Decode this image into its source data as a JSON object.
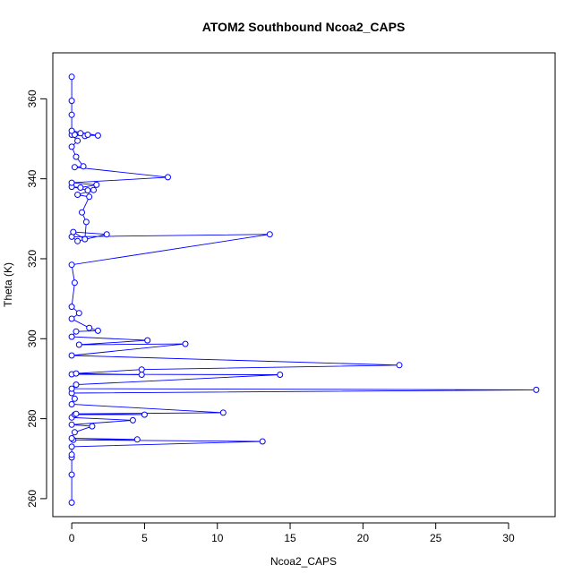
{
  "chart_data": {
    "type": "line",
    "title": "ATOM2 Southbound Ncoa2_CAPS",
    "xlabel": "Ncoa2_CAPS",
    "ylabel": "Theta (K)",
    "xlim": [
      -1.3,
      33.2
    ],
    "ylim": [
      255.5,
      371.5
    ],
    "xticks": [
      0,
      5,
      10,
      15,
      20,
      25,
      30
    ],
    "yticks": [
      260,
      280,
      300,
      320,
      340,
      360
    ],
    "grid": false,
    "series": [
      {
        "color": "#0000ff",
        "markers": "open-circle",
        "points": [
          [
            0.0,
            259.0
          ],
          [
            0.0,
            266.0
          ],
          [
            0.0,
            270.3
          ],
          [
            0.0,
            271.0
          ],
          [
            0.0,
            273.0
          ],
          [
            13.1,
            274.3
          ],
          [
            0.1,
            274.7
          ],
          [
            4.5,
            274.8
          ],
          [
            0.0,
            275.1
          ],
          [
            0.2,
            276.6
          ],
          [
            1.4,
            278.1
          ],
          [
            0.0,
            278.5
          ],
          [
            4.2,
            279.6
          ],
          [
            0.0,
            280.3
          ],
          [
            0.2,
            281.0
          ],
          [
            5.0,
            281.0
          ],
          [
            0.3,
            281.2
          ],
          [
            10.4,
            281.5
          ],
          [
            0.0,
            283.6
          ],
          [
            0.2,
            285.0
          ],
          [
            0.0,
            286.4
          ],
          [
            31.9,
            287.2
          ],
          [
            0.0,
            287.5
          ],
          [
            0.3,
            288.5
          ],
          [
            14.3,
            291.0
          ],
          [
            0.0,
            291.1
          ],
          [
            4.8,
            291.0
          ],
          [
            0.3,
            291.3
          ],
          [
            4.8,
            292.3
          ],
          [
            22.5,
            293.4
          ],
          [
            0.0,
            295.8
          ],
          [
            7.8,
            298.7
          ],
          [
            0.5,
            298.5
          ],
          [
            5.2,
            299.6
          ],
          [
            0.0,
            300.5
          ],
          [
            0.3,
            301.8
          ],
          [
            1.8,
            302.0
          ],
          [
            1.2,
            302.7
          ],
          [
            0.0,
            305.0
          ],
          [
            0.5,
            306.4
          ],
          [
            0.0,
            308.0
          ],
          [
            0.2,
            314.0
          ],
          [
            0.0,
            318.5
          ],
          [
            13.6,
            326.1
          ],
          [
            0.0,
            325.5
          ],
          [
            0.4,
            324.4
          ],
          [
            2.4,
            326.1
          ],
          [
            0.1,
            326.7
          ],
          [
            0.9,
            324.9
          ],
          [
            1.0,
            329.2
          ],
          [
            0.7,
            331.6
          ],
          [
            1.2,
            335.5
          ],
          [
            0.4,
            336.0
          ],
          [
            1.5,
            337.2
          ],
          [
            1.1,
            337.1
          ],
          [
            0.0,
            338.0
          ],
          [
            0.6,
            337.8
          ],
          [
            1.7,
            338.5
          ],
          [
            0.0,
            339.0
          ],
          [
            6.6,
            340.4
          ],
          [
            0.2,
            342.9
          ],
          [
            0.8,
            343.1
          ],
          [
            0.3,
            345.5
          ],
          [
            0.0,
            348.0
          ],
          [
            0.4,
            349.5
          ],
          [
            0.0,
            351.0
          ],
          [
            0.9,
            350.7
          ],
          [
            1.1,
            351.0
          ],
          [
            0.6,
            351.4
          ],
          [
            0.2,
            351.0
          ],
          [
            1.8,
            350.8
          ],
          [
            0.0,
            352.0
          ],
          [
            0.0,
            356.0
          ],
          [
            0.0,
            359.5
          ],
          [
            0.0,
            365.5
          ]
        ]
      }
    ]
  }
}
